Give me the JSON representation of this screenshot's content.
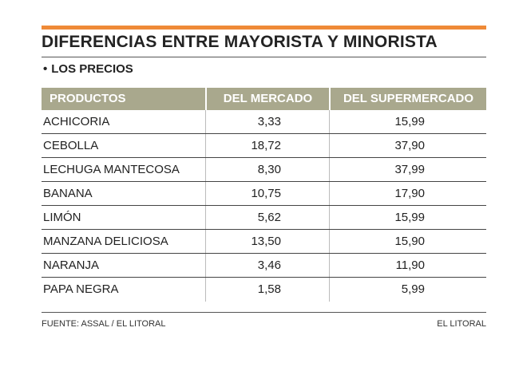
{
  "title": "DIFERENCIAS ENTRE MAYORISTA Y MINORISTA",
  "subtitle": "LOS PRECIOS",
  "colors": {
    "accent_bar": "#ef8a37",
    "header_bg": "#a9a88d"
  },
  "table": {
    "headers": [
      "PRODUCTOS",
      "DEL MERCADO",
      "DEL SUPERMERCADO"
    ],
    "rows": [
      [
        "ACHICORIA",
        "3,33",
        "15,99"
      ],
      [
        "CEBOLLA",
        "18,72",
        "37,90"
      ],
      [
        "LECHUGA MANTECOSA",
        "8,30",
        "37,99"
      ],
      [
        "BANANA",
        "10,75",
        "17,90"
      ],
      [
        "LIMÓN",
        "5,62",
        "15,99"
      ],
      [
        "MANZANA DELICIOSA",
        "13,50",
        "15,90"
      ],
      [
        "NARANJA",
        "3,46",
        "11,90"
      ],
      [
        "PAPA NEGRA",
        "1,58",
        "5,99"
      ]
    ]
  },
  "footer": {
    "source": "FUENTE: ASSAL / EL LITORAL",
    "credit": "EL LITORAL"
  }
}
